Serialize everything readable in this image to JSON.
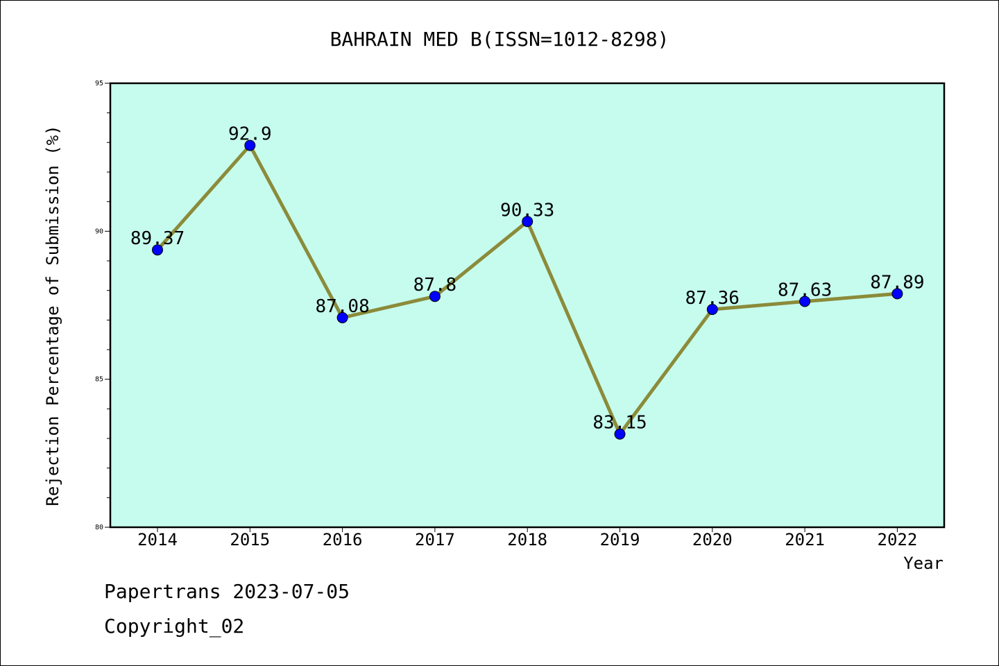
{
  "chart_data": {
    "type": "line",
    "title": "BAHRAIN MED B(ISSN=1012-8298)",
    "xlabel": "Year",
    "ylabel": "Rejection Percentage of Submission (%)",
    "categories": [
      "2014",
      "2015",
      "2016",
      "2017",
      "2018",
      "2019",
      "2020",
      "2021",
      "2022"
    ],
    "values": [
      89.37,
      92.9,
      87.08,
      87.8,
      90.33,
      83.15,
      87.36,
      87.63,
      87.89
    ],
    "value_labels": [
      "89.37",
      "92.9",
      "87.08",
      "87.8",
      "90.33",
      "83.15",
      "87.36",
      "87.63",
      "87.89"
    ],
    "ylim": [
      80,
      95
    ],
    "yticks": [
      80,
      85,
      90,
      95
    ],
    "grid": false,
    "colors": {
      "plot_background": "#c6fcee",
      "line": "#8b8b3a",
      "marker": "#0000ff"
    }
  },
  "footer": {
    "source": "Papertrans 2023-07-05",
    "copyright": "Copyright_02"
  }
}
